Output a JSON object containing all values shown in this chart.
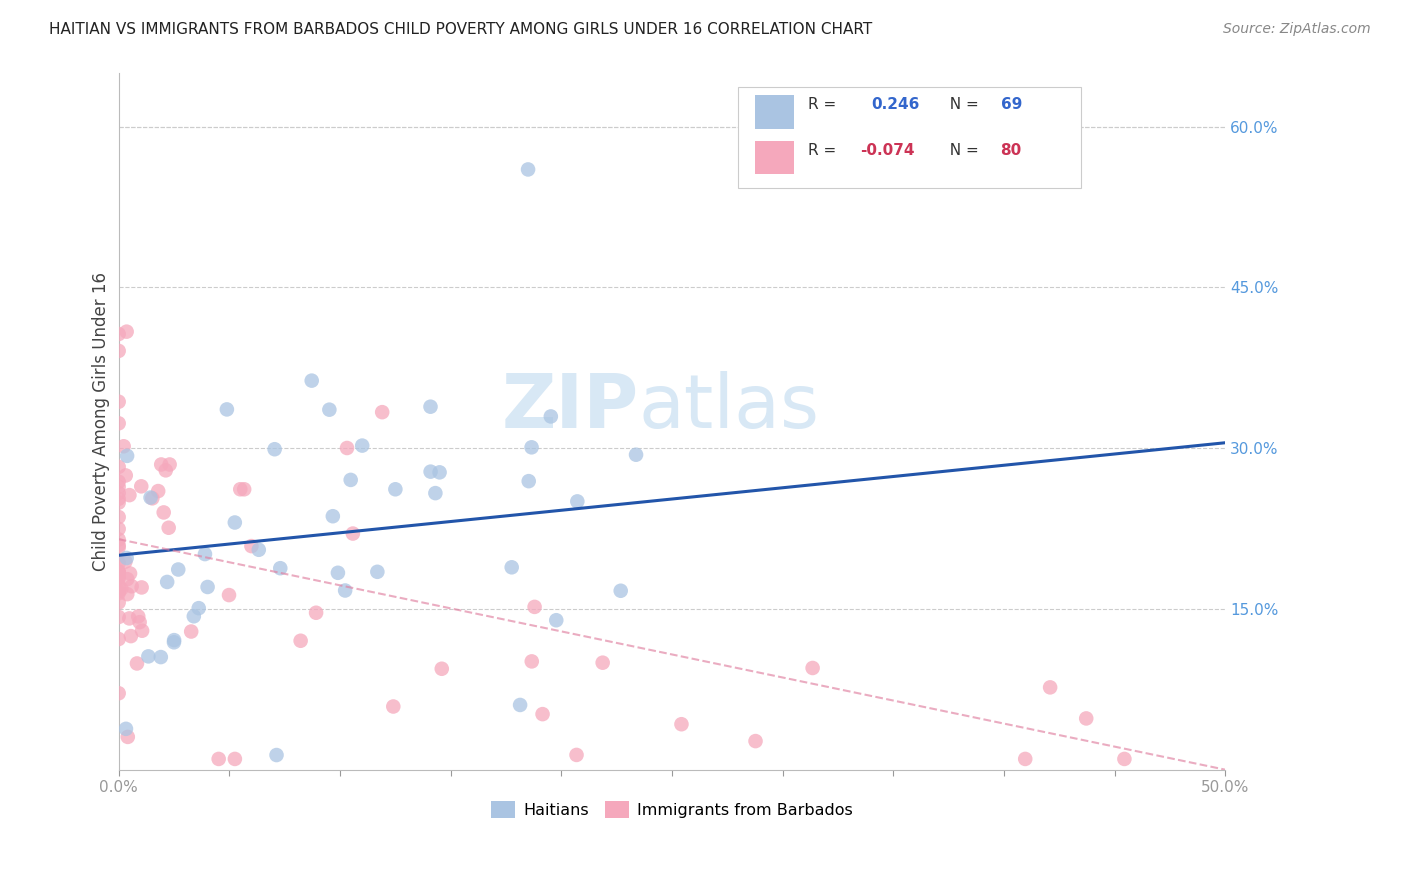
{
  "title": "HAITIAN VS IMMIGRANTS FROM BARBADOS CHILD POVERTY AMONG GIRLS UNDER 16 CORRELATION CHART",
  "source": "Source: ZipAtlas.com",
  "ylabel": "Child Poverty Among Girls Under 16",
  "xlim": [
    0,
    0.5
  ],
  "ylim": [
    0,
    0.65
  ],
  "yticks_right": [
    0.15,
    0.3,
    0.45,
    0.6
  ],
  "ytick_labels_right": [
    "15.0%",
    "30.0%",
    "45.0%",
    "60.0%"
  ],
  "grid_color": "#cccccc",
  "background_color": "#ffffff",
  "haitian_color": "#aac4e2",
  "barbados_color": "#f5a8bc",
  "haitian_line_color": "#2255aa",
  "barbados_line_color": "#e080a0",
  "haitian_R": 0.246,
  "haitian_N": 69,
  "barbados_R": -0.074,
  "barbados_N": 80,
  "watermark_zip": "ZIP",
  "watermark_atlas": "atlas",
  "haitian_line_y0": 0.2,
  "haitian_line_y1": 0.305,
  "barbados_line_y0": 0.215,
  "barbados_line_y1": 0.0,
  "legend_r1_color": "#3366cc",
  "legend_r2_color": "#cc3355"
}
